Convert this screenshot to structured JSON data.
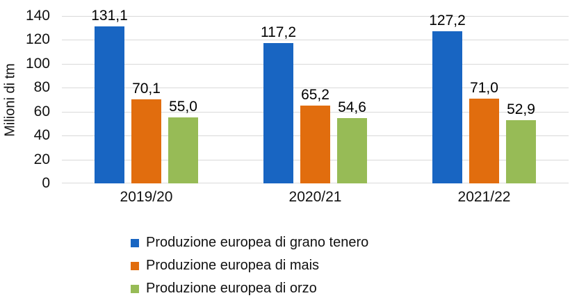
{
  "chart_data": {
    "type": "bar",
    "title": "",
    "ylabel": "Milioni di tm",
    "xlabel": "",
    "categories": [
      "2019/20",
      "2020/21",
      "2021/22"
    ],
    "series": [
      {
        "name": "Produzione europea di grano tenero",
        "color": "#1865C2",
        "values": [
          131.1,
          117.2,
          127.2
        ],
        "value_labels": [
          "131,1",
          "117,2",
          "127,2"
        ]
      },
      {
        "name": "Produzione europea di mais",
        "color": "#E16D0E",
        "values": [
          70.1,
          65.2,
          71.0
        ],
        "value_labels": [
          "70,1",
          "65,2",
          "71,0"
        ]
      },
      {
        "name": "Produzione europea di orzo",
        "color": "#97BB56",
        "values": [
          55.0,
          54.6,
          52.9
        ],
        "value_labels": [
          "55,0",
          "54,6",
          "52,9"
        ]
      }
    ],
    "ylim": [
      0,
      140
    ],
    "yticks": [
      0,
      20,
      40,
      60,
      80,
      100,
      120,
      140
    ],
    "grid": true,
    "legend_position": "bottom",
    "gridline_color": "#D9D9D9",
    "background": "#FFFFFF",
    "decimal_separator": ","
  }
}
